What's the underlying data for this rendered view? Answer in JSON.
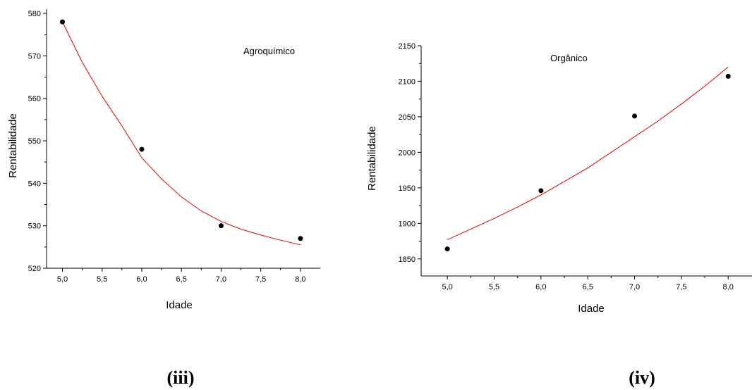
{
  "chart_data": [
    {
      "type": "scatter",
      "panel_label": "(iii)",
      "annotation": "Agroquímico",
      "xlabel": "Idade",
      "ylabel": "Rentabilidade",
      "xlim": [
        4.8,
        8.25
      ],
      "ylim": [
        520,
        581
      ],
      "xticks": [
        "5,0",
        "5,5",
        "6,0",
        "6,5",
        "7,0",
        "7,5",
        "8,0"
      ],
      "xtick_values": [
        5.0,
        5.5,
        6.0,
        6.5,
        7.0,
        7.5,
        8.0
      ],
      "yticks": [
        "520",
        "530",
        "540",
        "550",
        "560",
        "570",
        "580"
      ],
      "ytick_values": [
        520,
        530,
        540,
        550,
        560,
        570,
        580
      ],
      "points": {
        "x": [
          5.0,
          6.0,
          7.0,
          8.0
        ],
        "y": [
          578,
          548,
          530,
          527
        ]
      },
      "fit": {
        "x": [
          5.0,
          5.25,
          5.5,
          5.75,
          6.0,
          6.25,
          6.5,
          6.75,
          7.0,
          7.25,
          7.5,
          7.75,
          8.0
        ],
        "y": [
          578,
          568.5,
          560.5,
          553.5,
          546,
          541,
          536.8,
          533.5,
          531,
          529.2,
          527.8,
          526.6,
          525.5
        ]
      },
      "grid": false,
      "colors": {
        "points": "#000000",
        "fit": "#e00000"
      }
    },
    {
      "type": "scatter",
      "panel_label": "(iv)",
      "annotation": "Orgânico",
      "xlabel": "Idade",
      "ylabel": "Rentabilidade",
      "xlim": [
        4.72,
        8.3
      ],
      "ylim": [
        1826,
        2150
      ],
      "xticks": [
        "5,0",
        "5,5",
        "6,0",
        "6,5",
        "7,0",
        "7,5",
        "8,0"
      ],
      "xtick_values": [
        5.0,
        5.5,
        6.0,
        6.5,
        7.0,
        7.5,
        8.0
      ],
      "yticks": [
        "1850",
        "1900",
        "1950",
        "2000",
        "2050",
        "2100",
        "2150"
      ],
      "ytick_values": [
        1850,
        1900,
        1950,
        2000,
        2050,
        2100,
        2150
      ],
      "points": {
        "x": [
          5.0,
          6.0,
          7.0,
          8.0
        ],
        "y": [
          1864,
          1946,
          2051,
          2107
        ]
      },
      "fit": {
        "x": [
          5.0,
          5.25,
          5.5,
          5.75,
          6.0,
          6.25,
          6.5,
          6.75,
          7.0,
          7.25,
          7.5,
          7.75,
          8.0
        ],
        "y": [
          1877,
          1892,
          1907,
          1923,
          1940,
          1959,
          1978,
          2000,
          2022,
          2044,
          2068,
          2093,
          2120
        ]
      },
      "grid": false,
      "colors": {
        "points": "#000000",
        "fit": "#e00000"
      }
    }
  ]
}
